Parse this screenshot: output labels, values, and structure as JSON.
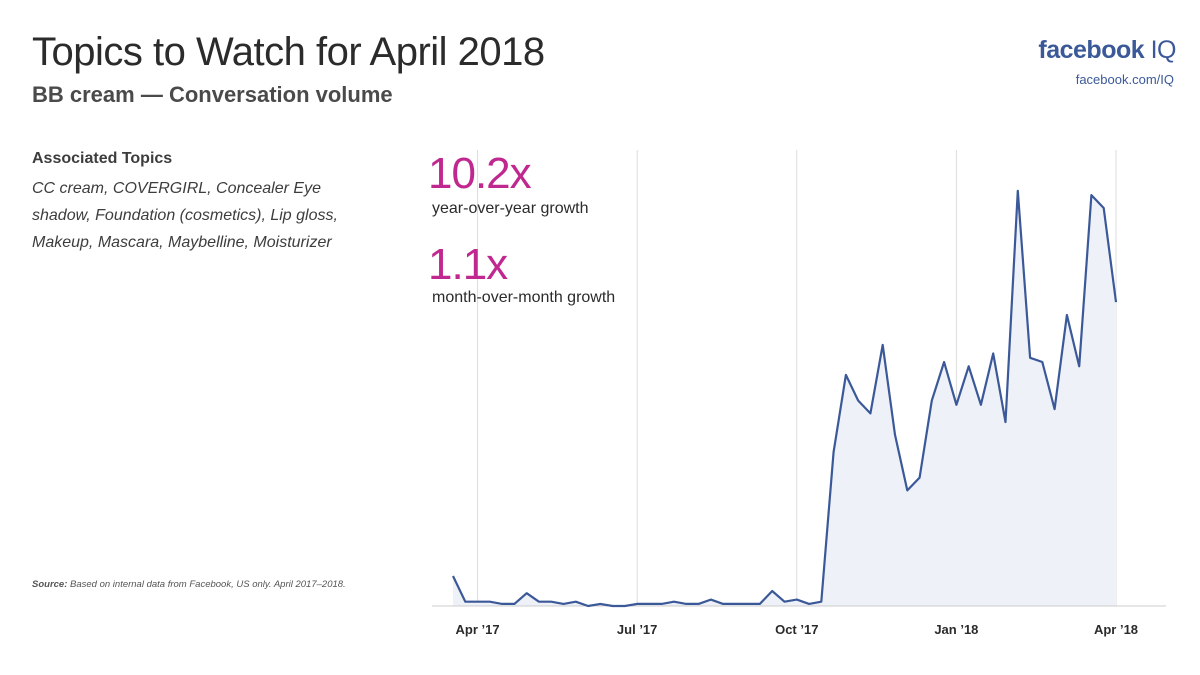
{
  "header": {
    "title": "Topics to Watch for April 2018",
    "subtitle": "BB cream — Conversation volume"
  },
  "brand": {
    "logo_main": "facebook",
    "logo_suffix": " IQ",
    "url": "facebook.com/IQ",
    "color": "#3b5998"
  },
  "associated": {
    "heading": "Associated Topics",
    "topics": "CC cream, COVERGIRL, Concealer Eye shadow, Foundation (cosmetics), Lip gloss, Makeup, Mascara, Maybelline, Moisturizer"
  },
  "stats": [
    {
      "value": "10.2x",
      "label": "year-over-year growth"
    },
    {
      "value": "1.1x",
      "label": "month-over-month growth"
    }
  ],
  "source": {
    "label": "Source:",
    "text": " Based on internal data from Facebook, US only. April 2017–2018."
  },
  "colors": {
    "accent": "#c0288f",
    "line": "#3b5998",
    "fill": "#eef1f8",
    "grid": "#dddddd"
  },
  "chart_data": {
    "type": "area",
    "title": "",
    "xlabel": "",
    "ylabel": "",
    "grid": true,
    "x_ticks": [
      {
        "label": "Apr ’17",
        "index": 2
      },
      {
        "label": "Jul ’17",
        "index": 15
      },
      {
        "label": "Oct ’17",
        "index": 28
      },
      {
        "label": "Jan ’18",
        "index": 41
      },
      {
        "label": "Apr ’18",
        "index": 54
      }
    ],
    "ylim": [
      0,
      100
    ],
    "series": [
      {
        "name": "",
        "values": [
          7,
          1,
          1,
          1,
          0.5,
          0.5,
          3,
          1,
          1,
          0.5,
          1,
          0,
          0.5,
          0,
          0,
          0.5,
          0.5,
          0.5,
          1,
          0.5,
          0.5,
          1.5,
          0.5,
          0.5,
          0.5,
          0.5,
          3.5,
          1,
          1.5,
          0.5,
          1,
          36,
          54,
          48,
          45,
          61,
          40,
          27,
          30,
          48,
          57,
          47,
          56,
          47,
          59,
          43,
          97,
          58,
          57,
          46,
          68,
          56,
          96,
          93,
          71
        ]
      }
    ]
  }
}
